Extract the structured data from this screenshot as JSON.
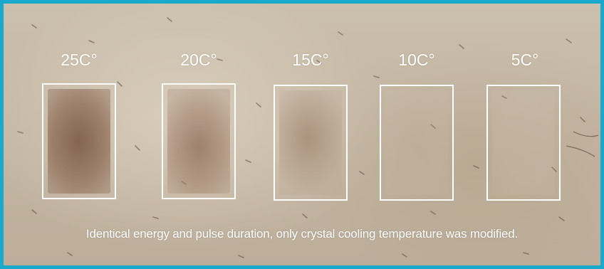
{
  "samples": [
    {
      "label": "25C°"
    },
    {
      "label": "20C°"
    },
    {
      "label": "15C°"
    },
    {
      "label": "10C°"
    },
    {
      "label": "5C°"
    }
  ],
  "caption": "Identical energy and pulse duration, only crystal cooling temperature was modified.",
  "colors": {
    "border": "#19a9cc",
    "text": "#ffffff",
    "skin": "#c4b7a3",
    "lesion": "#8a6a57"
  }
}
